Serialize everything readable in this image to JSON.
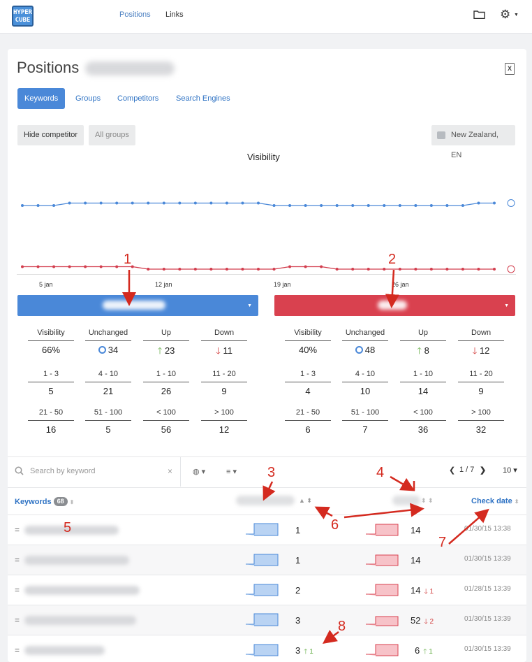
{
  "app": {
    "logo_text": "HYPER CUBE",
    "nav": {
      "positions": "Positions",
      "links": "Links"
    },
    "icons": {
      "folder": "folder-icon",
      "settings": "gear-icon"
    }
  },
  "page": {
    "title": "Positions",
    "export_icon": "X",
    "tabs": [
      "Keywords",
      "Groups",
      "Competitors",
      "Search Engines"
    ],
    "buttons": {
      "hide_competitor": "Hide competitor",
      "all_groups": "All groups",
      "region": "New Zealand, EN"
    }
  },
  "chart": {
    "title": "Visibility",
    "x_ticks": [
      "5 jan",
      "12 jan",
      "19 jan",
      "26 jan"
    ],
    "colors": {
      "blue": "#4a88d8",
      "red": "#d23d4d"
    }
  },
  "chart_data": {
    "type": "line",
    "title": "Visibility",
    "series": [
      {
        "values": [
          0.66,
          0.66,
          0.66,
          0.67,
          0.67,
          0.67,
          0.67,
          0.67,
          0.67,
          0.67,
          0.67,
          0.67,
          0.67,
          0.67,
          0.67,
          0.67,
          0.66,
          0.66,
          0.66,
          0.66,
          0.66,
          0.66,
          0.66,
          0.66,
          0.66,
          0.66,
          0.66,
          0.66,
          0.66,
          0.67,
          0.67
        ]
      },
      {
        "values": [
          0.41,
          0.41,
          0.41,
          0.41,
          0.41,
          0.41,
          0.41,
          0.41,
          0.4,
          0.4,
          0.4,
          0.4,
          0.4,
          0.4,
          0.4,
          0.4,
          0.4,
          0.41,
          0.41,
          0.41,
          0.4,
          0.4,
          0.4,
          0.4,
          0.4,
          0.4,
          0.4,
          0.4,
          0.4,
          0.4,
          0.4
        ]
      }
    ]
  },
  "panels": [
    {
      "color": "#4a88d8",
      "stats": {
        "visibility": {
          "label": "Visibility",
          "value": "66%"
        },
        "unchanged": {
          "label": "Unchanged",
          "value": "34"
        },
        "up": {
          "label": "Up",
          "value": "23"
        },
        "down": {
          "label": "Down",
          "value": "11"
        }
      },
      "ranges": [
        {
          "label": "1 - 3",
          "value": "5"
        },
        {
          "label": "4 - 10",
          "value": "21"
        },
        {
          "label": "1 - 10",
          "value": "26"
        },
        {
          "label": "11 - 20",
          "value": "9"
        },
        {
          "label": "21 - 50",
          "value": "16"
        },
        {
          "label": "51 - 100",
          "value": "5"
        },
        {
          "label": "< 100",
          "value": "56"
        },
        {
          "label": "> 100",
          "value": "12"
        }
      ]
    },
    {
      "color": "#d9414f",
      "stats": {
        "visibility": {
          "label": "Visibility",
          "value": "40%"
        },
        "unchanged": {
          "label": "Unchanged",
          "value": "48"
        },
        "up": {
          "label": "Up",
          "value": "8"
        },
        "down": {
          "label": "Down",
          "value": "12"
        }
      },
      "ranges": [
        {
          "label": "1 - 3",
          "value": "4"
        },
        {
          "label": "4 - 10",
          "value": "10"
        },
        {
          "label": "1 - 10",
          "value": "14"
        },
        {
          "label": "11 - 20",
          "value": "9"
        },
        {
          "label": "21 - 50",
          "value": "6"
        },
        {
          "label": "51 - 100",
          "value": "7"
        },
        {
          "label": "< 100",
          "value": "36"
        },
        {
          "label": "> 100",
          "value": "32"
        }
      ]
    }
  ],
  "table": {
    "search_placeholder": "Search by keyword",
    "clear": "×",
    "pager": "1 / 7",
    "page_size": "10",
    "headers": {
      "keywords": "Keywords",
      "count": "68",
      "check_date": "Check date"
    },
    "rows": [
      {
        "pos1": "1",
        "chg1": "",
        "dir1": "",
        "pos2": "14",
        "chg2": "",
        "dir2": "",
        "date": "01/30/15 13:38"
      },
      {
        "pos1": "1",
        "chg1": "",
        "dir1": "",
        "pos2": "14",
        "chg2": "",
        "dir2": "",
        "date": "01/30/15 13:39"
      },
      {
        "pos1": "2",
        "chg1": "",
        "dir1": "",
        "pos2": "14",
        "chg2": "1",
        "dir2": "down",
        "date": "01/28/15 13:39"
      },
      {
        "pos1": "3",
        "chg1": "",
        "dir1": "",
        "pos2": "52",
        "chg2": "2",
        "dir2": "down",
        "date": "01/30/15 13:39"
      },
      {
        "pos1": "3",
        "chg1": "1",
        "dir1": "up",
        "pos2": "6",
        "chg2": "1",
        "dir2": "up",
        "date": "01/30/15 13:39"
      }
    ]
  },
  "annotations": [
    "1",
    "2",
    "3",
    "4",
    "5",
    "6",
    "7",
    "8"
  ]
}
